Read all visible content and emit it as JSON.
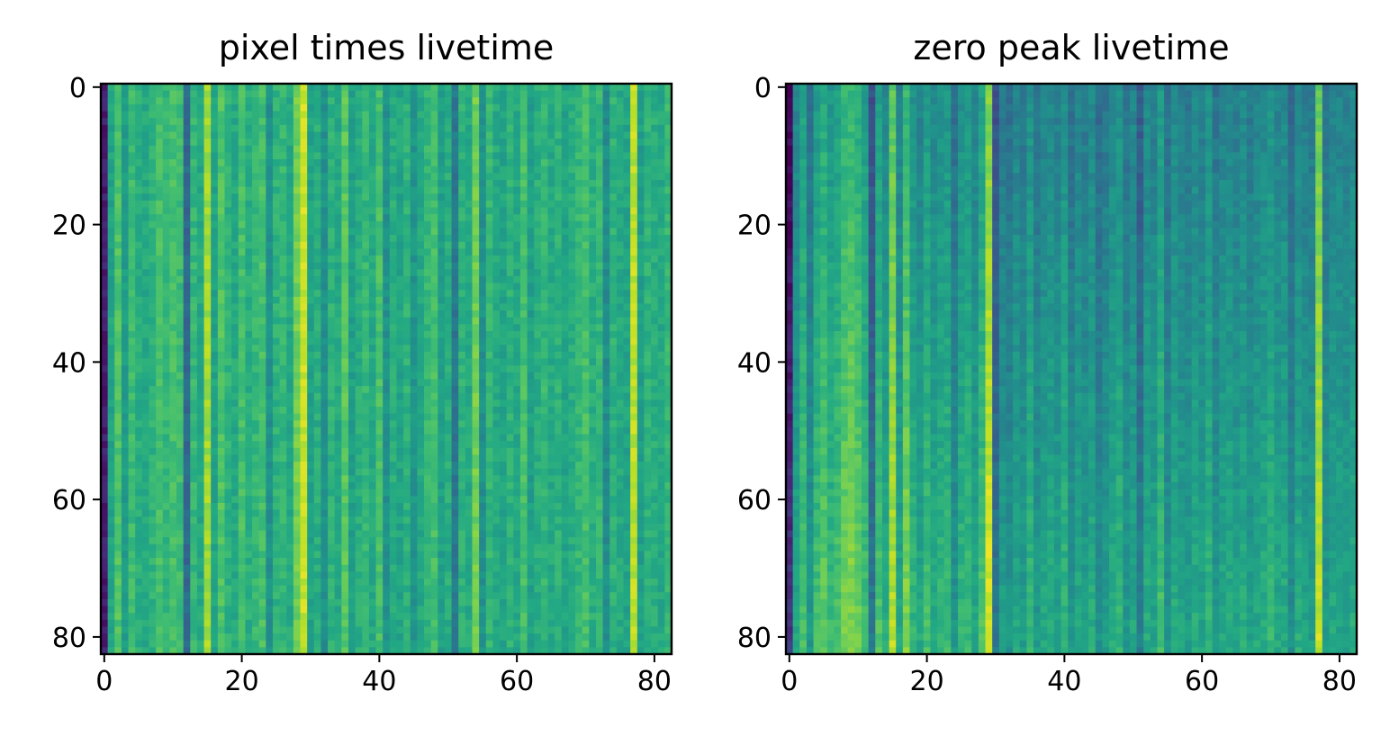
{
  "chart_data": [
    {
      "type": "heatmap",
      "title": "pixel times livetime",
      "xlabel": "",
      "ylabel": "",
      "colormap": "viridis",
      "grid_size": [
        83,
        83
      ],
      "xlim": [
        -0.5,
        82.5
      ],
      "ylim": [
        82.5,
        -0.5
      ],
      "xticks": [
        0,
        20,
        40,
        60,
        80
      ],
      "yticks": [
        0,
        20,
        40,
        60,
        80
      ],
      "xtick_labels": [
        "0",
        "20",
        "40",
        "60",
        "80"
      ],
      "ytick_labels": [
        "0",
        "20",
        "40",
        "60",
        "80"
      ],
      "column_levels": [
        0.08,
        0.58,
        0.72,
        0.55,
        0.68,
        0.62,
        0.6,
        0.64,
        0.7,
        0.66,
        0.7,
        0.68,
        0.34,
        0.66,
        0.6,
        0.86,
        0.58,
        0.72,
        0.64,
        0.6,
        0.7,
        0.62,
        0.66,
        0.7,
        0.5,
        0.64,
        0.66,
        0.6,
        0.78,
        0.92,
        0.58,
        0.62,
        0.5,
        0.64,
        0.6,
        0.74,
        0.56,
        0.62,
        0.66,
        0.6,
        0.7,
        0.5,
        0.62,
        0.58,
        0.64,
        0.52,
        0.6,
        0.66,
        0.7,
        0.56,
        0.62,
        0.4,
        0.64,
        0.6,
        0.78,
        0.5,
        0.66,
        0.6,
        0.58,
        0.64,
        0.6,
        0.7,
        0.56,
        0.62,
        0.66,
        0.6,
        0.64,
        0.58,
        0.62,
        0.66,
        0.7,
        0.62,
        0.66,
        0.48,
        0.64,
        0.6,
        0.58,
        0.9,
        0.56,
        0.64,
        0.62,
        0.6,
        0.66
      ],
      "row_gradient": {
        "top": 0.0,
        "bottom": 0.0
      },
      "noise": 0.05
    },
    {
      "type": "heatmap",
      "title": "zero peak livetime",
      "xlabel": "",
      "ylabel": "",
      "colormap": "viridis",
      "grid_size": [
        83,
        83
      ],
      "xlim": [
        -0.5,
        82.5
      ],
      "ylim": [
        82.5,
        -0.5
      ],
      "xticks": [
        0,
        20,
        40,
        60,
        80
      ],
      "yticks": [
        0,
        20,
        40,
        60,
        80
      ],
      "xtick_labels": [
        "0",
        "20",
        "40",
        "60",
        "80"
      ],
      "ytick_labels": [
        "0",
        "20",
        "40",
        "60",
        "80"
      ],
      "column_levels": [
        0.06,
        0.5,
        0.62,
        0.44,
        0.6,
        0.66,
        0.58,
        0.62,
        0.7,
        0.72,
        0.68,
        0.6,
        0.3,
        0.62,
        0.52,
        0.8,
        0.5,
        0.72,
        0.56,
        0.5,
        0.6,
        0.52,
        0.56,
        0.58,
        0.42,
        0.56,
        0.58,
        0.5,
        0.62,
        0.86,
        0.3,
        0.46,
        0.42,
        0.5,
        0.46,
        0.56,
        0.44,
        0.5,
        0.52,
        0.48,
        0.56,
        0.42,
        0.5,
        0.46,
        0.52,
        0.4,
        0.46,
        0.52,
        0.56,
        0.44,
        0.5,
        0.34,
        0.52,
        0.48,
        0.6,
        0.42,
        0.52,
        0.48,
        0.46,
        0.52,
        0.48,
        0.56,
        0.44,
        0.5,
        0.52,
        0.48,
        0.52,
        0.46,
        0.5,
        0.52,
        0.56,
        0.5,
        0.52,
        0.4,
        0.52,
        0.48,
        0.46,
        0.82,
        0.44,
        0.5,
        0.5,
        0.48,
        0.52
      ],
      "row_gradient": {
        "top": -0.06,
        "bottom": 0.1
      },
      "noise": 0.05
    }
  ]
}
